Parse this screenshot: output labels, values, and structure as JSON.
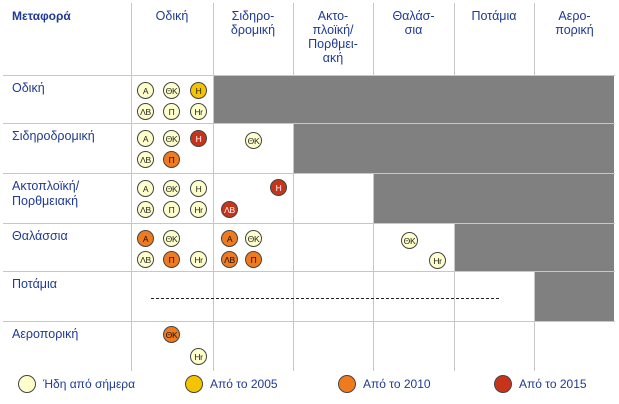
{
  "matrix": {
    "corner_label": "Μεταφορά",
    "columns": [
      "Οδική",
      "Σιδηρο-\nδρομική",
      "Ακτο-\nπλοϊκή/\nΠορθμει-\nακή",
      "Θαλάσ-\nσια",
      "Ποτάμια",
      "Αερο-\nπορική"
    ],
    "rows": [
      "Οδική",
      "Σιδηροδρομική",
      "Ακτοπλοϊκή/\nΠορθμειακή",
      "Θαλάσσια",
      "Ποτάμια",
      "Αεροπορική"
    ],
    "cells": [
      {
        "row": 0,
        "col": 0,
        "badges": [
          {
            "label": "Α",
            "status": "today"
          },
          {
            "label": "ΘΚ",
            "status": "today"
          },
          {
            "label": "Η",
            "status": "2005"
          },
          {
            "label": "ΛΒ",
            "status": "today"
          },
          {
            "label": "Π",
            "status": "today"
          },
          {
            "label": "Ηr",
            "status": "today"
          }
        ]
      },
      {
        "row": 1,
        "col": 0,
        "badges": [
          {
            "label": "Α",
            "status": "today"
          },
          {
            "label": "ΘΚ",
            "status": "today"
          },
          {
            "label": "Η",
            "status": "2015"
          },
          {
            "label": "ΛΒ",
            "status": "today"
          },
          {
            "label": "Π",
            "status": "2010"
          }
        ]
      },
      {
        "row": 1,
        "col": 1,
        "badges": [
          {
            "label": "ΘΚ",
            "status": "today"
          }
        ]
      },
      {
        "row": 2,
        "col": 0,
        "badges": [
          {
            "label": "Α",
            "status": "today"
          },
          {
            "label": "ΘΚ",
            "status": "today"
          },
          {
            "label": "Η",
            "status": "today"
          },
          {
            "label": "ΛΒ",
            "status": "today"
          },
          {
            "label": "Π",
            "status": "today"
          },
          {
            "label": "Ηr",
            "status": "today"
          }
        ]
      },
      {
        "row": 2,
        "col": 1,
        "badges": [
          {
            "label": "Η",
            "status": "2015"
          },
          {
            "label": "ΛΒ",
            "status": "2015"
          }
        ]
      },
      {
        "row": 3,
        "col": 0,
        "badges": [
          {
            "label": "Α",
            "status": "2010"
          },
          {
            "label": "ΘΚ",
            "status": "today"
          },
          {
            "label": "ΛΒ",
            "status": "today"
          },
          {
            "label": "Π",
            "status": "2010"
          },
          {
            "label": "Ηr",
            "status": "today"
          }
        ]
      },
      {
        "row": 3,
        "col": 1,
        "badges": [
          {
            "label": "Α",
            "status": "2010"
          },
          {
            "label": "ΘΚ",
            "status": "today"
          },
          {
            "label": "ΛΒ",
            "status": "2010"
          },
          {
            "label": "Π",
            "status": "2010"
          }
        ]
      },
      {
        "row": 3,
        "col": 3,
        "badges": [
          {
            "label": "ΘΚ",
            "status": "today"
          },
          {
            "label": "Ηr",
            "status": "today"
          }
        ]
      },
      {
        "row": 5,
        "col": 0,
        "badges": [
          {
            "label": "ΘΚ",
            "status": "2010"
          },
          {
            "label": "Ηr",
            "status": "today"
          }
        ]
      }
    ],
    "gray_cells_note": ""
  },
  "legend": [
    {
      "label": "Ήδη από σήμερα",
      "status": "today"
    },
    {
      "label": "Από το 2005",
      "status": "2005"
    },
    {
      "label": "Από το 2010",
      "status": "2010"
    },
    {
      "label": "Από το 2015",
      "status": "2015"
    }
  ],
  "colors": {
    "today": "#ffffcc",
    "2005": "#f5c400",
    "2010": "#f07a1e",
    "2015": "#c8341a",
    "blocked": "#808080",
    "text": "#1f3a93"
  }
}
